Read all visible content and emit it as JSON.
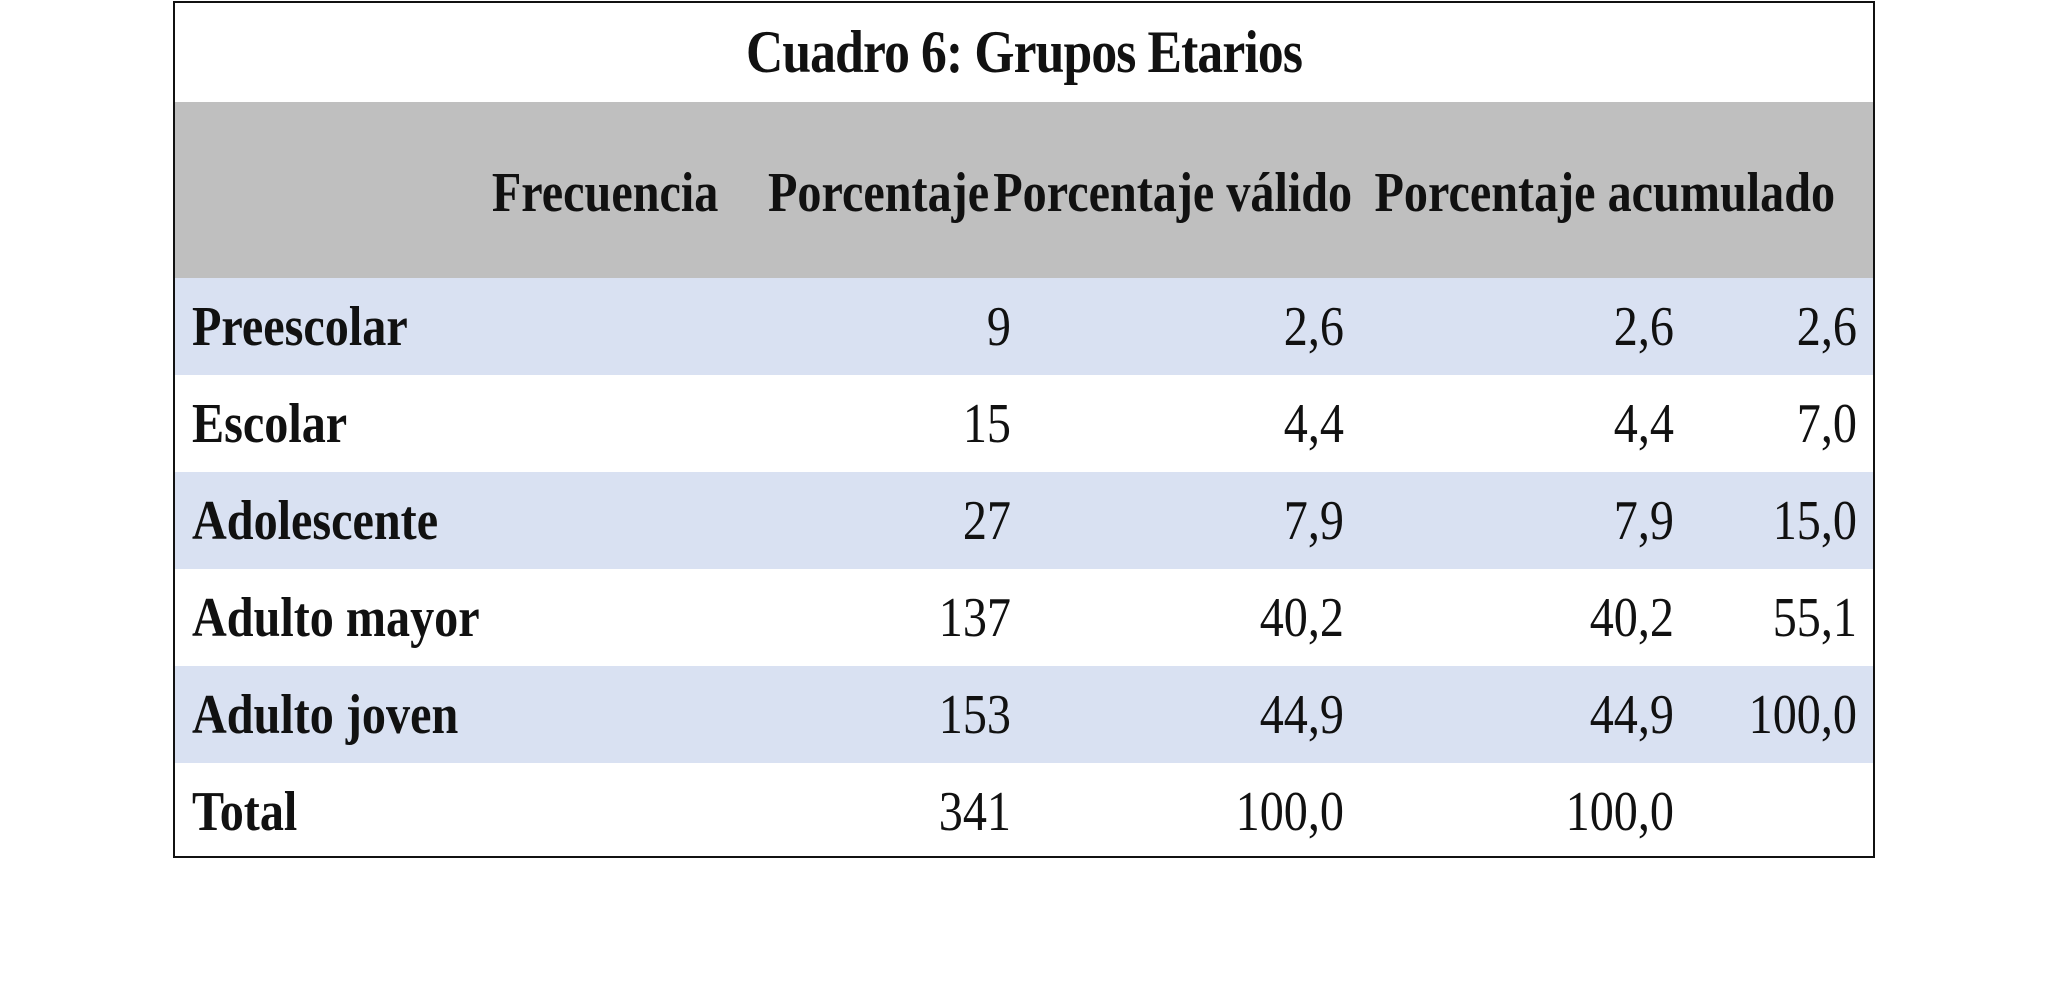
{
  "table": {
    "title": "Cuadro 6: Grupos Etarios",
    "headers": {
      "label": "",
      "frecuencia": "Frecuencia",
      "porcentaje": "Porcentaje",
      "valido_line1": "Porcentaje",
      "valido_line2": "válido",
      "acumulado_line1": "Porcentaje",
      "acumulado_line2": "acumulado"
    },
    "rows": [
      {
        "label": "Preescolar",
        "frecuencia": "9",
        "porcentaje": "2,6",
        "valido": "2,6",
        "acumulado": "2,6"
      },
      {
        "label": "Escolar",
        "frecuencia": "15",
        "porcentaje": "4,4",
        "valido": "4,4",
        "acumulado": "7,0"
      },
      {
        "label": "Adolescente",
        "frecuencia": "27",
        "porcentaje": "7,9",
        "valido": "7,9",
        "acumulado": "15,0"
      },
      {
        "label": "Adulto mayor",
        "frecuencia": "137",
        "porcentaje": "40,2",
        "valido": "40,2",
        "acumulado": "55,1"
      },
      {
        "label": "Adulto joven",
        "frecuencia": "153",
        "porcentaje": "44,9",
        "valido": "44,9",
        "acumulado": "100,0"
      },
      {
        "label": "Total",
        "frecuencia": "341",
        "porcentaje": "100,0",
        "valido": "100,0",
        "acumulado": ""
      }
    ],
    "colors": {
      "header_bg": "#bfbfbf",
      "shaded_row_bg": "#d9e1f2",
      "plain_row_bg": "#ffffff",
      "border": "#111111"
    }
  }
}
